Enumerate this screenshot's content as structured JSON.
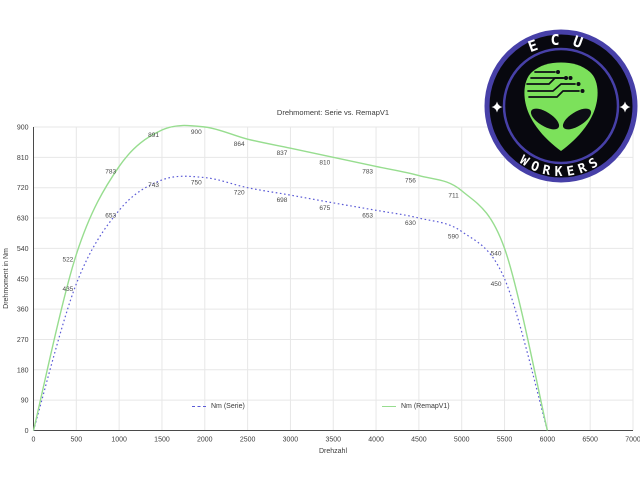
{
  "page": {
    "background": "#ffffff"
  },
  "chart_data": {
    "type": "line",
    "title": "Drehmoment: Serie vs. RemapV1",
    "xlabel": "Drehzahl",
    "ylabel": "Drehmoment in Nm",
    "x": [
      0,
      500,
      1000,
      1500,
      2000,
      2500,
      3000,
      3500,
      4000,
      4500,
      5000,
      5500,
      6000
    ],
    "series": [
      {
        "name": "Nm (Serie)",
        "color": "#5b5bd6",
        "style": "dotted",
        "values": [
          0,
          435,
          653,
          743,
          750,
          720,
          698,
          675,
          653,
          630,
          590,
          450,
          0
        ]
      },
      {
        "name": "Nm (RemapV1)",
        "color": "#97dd8f",
        "style": "solid",
        "values": [
          0,
          522,
          783,
          891,
          900,
          864,
          837,
          810,
          783,
          756,
          711,
          540,
          0
        ]
      }
    ],
    "x_ticks": [
      0,
      500,
      1000,
      1500,
      2000,
      2500,
      3000,
      3500,
      4000,
      4500,
      5000,
      5500,
      6000,
      6500,
      7000
    ],
    "y_ticks": [
      0,
      90,
      180,
      270,
      360,
      450,
      540,
      630,
      720,
      810,
      900
    ],
    "xlim": [
      0,
      7000
    ],
    "ylim": [
      0,
      900
    ],
    "grid": true,
    "legend_position": "bottom-inside",
    "colors": {
      "grid": "#e7e7e7",
      "axis": "#4a4a4a",
      "tick_label": "#3f3f3f",
      "point_label": "#4a4a4a"
    }
  },
  "logo": {
    "text_top": "ECU",
    "text_bottom": "WORKERS",
    "colors": {
      "ring": "#4740a8",
      "field": "#08080f",
      "alien": "#7ce15b",
      "text": "#ffffff"
    }
  }
}
